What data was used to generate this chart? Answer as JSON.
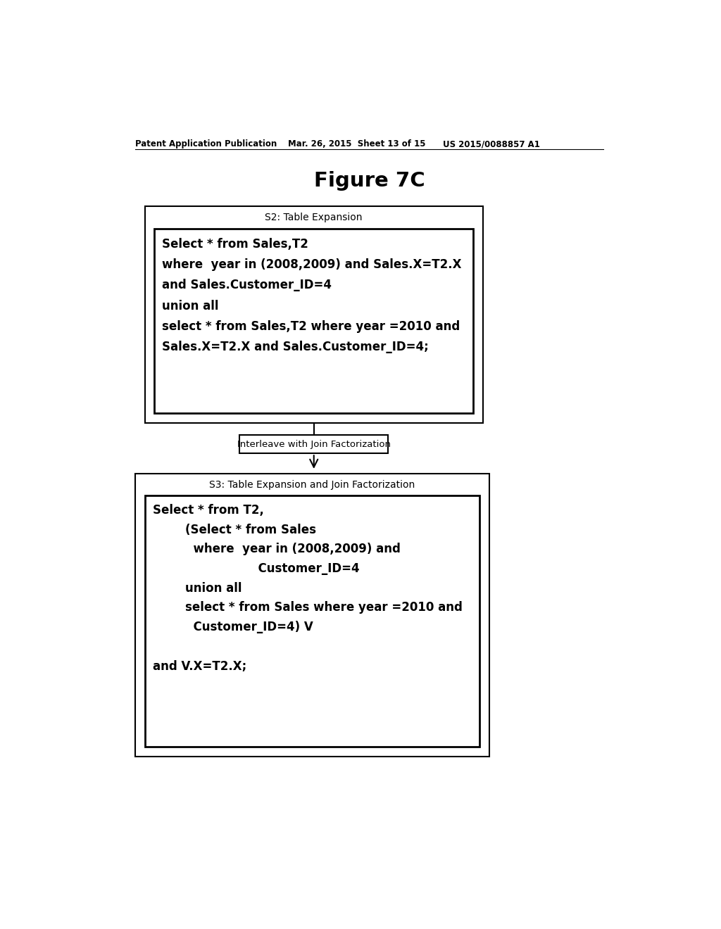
{
  "title": "Figure 7C",
  "header_left": "Patent Application Publication",
  "header_mid": "Mar. 26, 2015  Sheet 13 of 15",
  "header_right": "US 2015/0088857 A1",
  "box1_label": "S2: Table Expansion",
  "box1_inner_lines": [
    {
      "text": "Select * from Sales,T2",
      "bold": true
    },
    {
      "text": "where  year in (2008,2009) and Sales.X=T2.X",
      "bold": true
    },
    {
      "text": "and Sales.Customer_ID=4",
      "bold": true
    },
    {
      "text": "union all",
      "bold": true
    },
    {
      "text": "select * from Sales,T2 where year =2010 and",
      "bold": true
    },
    {
      "text": "Sales.X=T2.X and Sales.Customer_ID=4;",
      "bold": true
    }
  ],
  "arrow_label": "Interleave with Join Factorization",
  "box2_label": "S3: Table Expansion and Join Factorization",
  "box2_inner_lines": [
    {
      "text": "Select * from T2,",
      "bold": true,
      "indent": 0
    },
    {
      "text": "        (Select * from Sales",
      "bold": true,
      "indent": 0
    },
    {
      "text": "          where  year in (2008,2009) and",
      "bold": true,
      "indent": 0
    },
    {
      "text": "                          Customer_ID=4",
      "bold": true,
      "indent": 0
    },
    {
      "text": "        union all",
      "bold": true,
      "indent": 0
    },
    {
      "text": "        select * from Sales where year =2010 and",
      "bold": true,
      "indent": 0
    },
    {
      "text": "          Customer_ID=4) V",
      "bold": true,
      "indent": 0
    },
    {
      "text": "",
      "bold": true,
      "indent": 0
    },
    {
      "text": "and V.X=T2.X;",
      "bold": true,
      "indent": 0
    }
  ],
  "bg_color": "#ffffff",
  "text_color": "#000000",
  "box_edge_color": "#000000"
}
